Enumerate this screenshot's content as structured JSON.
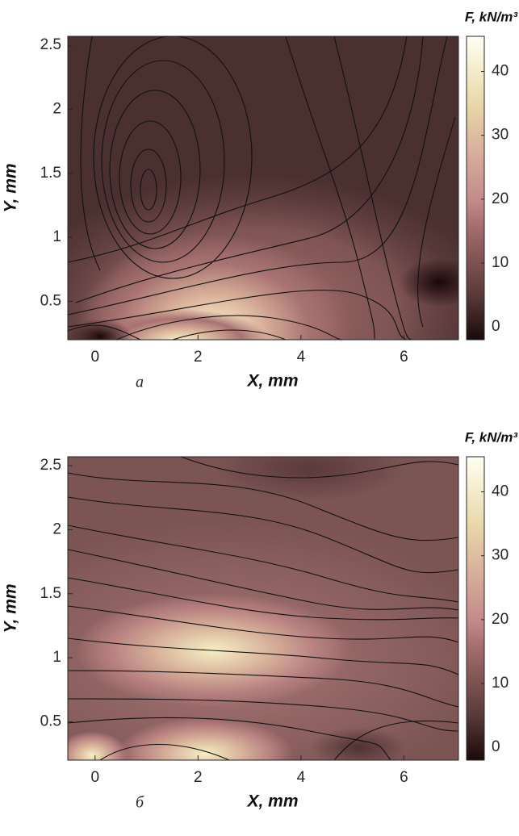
{
  "chart_data": [
    {
      "type": "contour",
      "panel_label": "а",
      "xlabel": "X, mm",
      "ylabel": "Y, mm",
      "xlim": [
        -0.53,
        7.06
      ],
      "ylim": [
        0.2,
        2.57
      ],
      "xticks": [
        0,
        2,
        4,
        6
      ],
      "yticks": [
        0.5,
        1,
        1.5,
        2,
        2.5
      ],
      "colorbar": {
        "title": "F, kN/m³",
        "lim": [
          -2,
          45.5
        ],
        "ticks": [
          0,
          10,
          20,
          30,
          40
        ]
      }
    },
    {
      "type": "contour",
      "panel_label": "б",
      "xlabel": "X, mm",
      "ylabel": "Y, mm",
      "xlim": [
        -0.53,
        7.06
      ],
      "ylim": [
        0.2,
        2.57
      ],
      "xticks": [
        0,
        2,
        4,
        6
      ],
      "yticks": [
        0.5,
        1,
        1.5,
        2,
        2.5
      ],
      "colorbar": {
        "title": "F, kN/m³",
        "lim": [
          -2,
          45.5
        ],
        "ticks": [
          0,
          10,
          20,
          30,
          40
        ]
      }
    }
  ]
}
